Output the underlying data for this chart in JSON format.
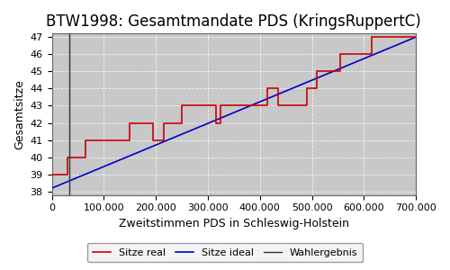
{
  "title": "BTW1998: Gesamtmandate PDS (KringsRuppertC)",
  "xlabel": "Zweitstimmen PDS in Schleswig-Holstein",
  "ylabel": "Gesamtsitze",
  "xlim": [
    0,
    700000
  ],
  "ylim": [
    37.8,
    47.2
  ],
  "yticks": [
    38,
    39,
    40,
    41,
    42,
    43,
    44,
    45,
    46,
    47
  ],
  "xticks": [
    0,
    100000,
    200000,
    300000,
    400000,
    500000,
    600000,
    700000
  ],
  "fig_background": "#ffffff",
  "plot_background": "#c8c8c8",
  "ideal_line": {
    "x": [
      0,
      700000
    ],
    "y": [
      38.2,
      47.0
    ],
    "color": "#0000cc",
    "linewidth": 1.2,
    "label": "Sitze ideal"
  },
  "real_line_x": [
    0,
    30000,
    30000,
    65000,
    65000,
    150000,
    150000,
    195000,
    195000,
    215000,
    215000,
    250000,
    250000,
    315000,
    315000,
    325000,
    325000,
    415000,
    415000,
    435000,
    435000,
    490000,
    490000,
    510000,
    510000,
    555000,
    555000,
    615000,
    615000,
    625000,
    625000,
    700000
  ],
  "real_line_y": [
    39,
    39,
    40,
    40,
    41,
    41,
    42,
    42,
    41,
    41,
    42,
    42,
    43,
    43,
    42,
    42,
    43,
    43,
    44,
    44,
    43,
    43,
    44,
    44,
    45,
    45,
    46,
    46,
    47,
    47,
    47,
    47
  ],
  "real_color": "#cc0000",
  "real_linewidth": 1.2,
  "real_label": "Sitze real",
  "wahlergebnis_x": 34000,
  "wahlergebnis_color": "#333333",
  "wahlergebnis_label": "Wahlergebnis",
  "legend_facecolor": "#f0f0f0",
  "legend_edgecolor": "#888888",
  "title_fontsize": 12,
  "axis_label_fontsize": 9,
  "tick_fontsize": 8,
  "legend_fontsize": 8,
  "grid_color": "#ffffff",
  "grid_linestyle": "--",
  "grid_linewidth": 0.6,
  "grid_alpha": 0.8
}
